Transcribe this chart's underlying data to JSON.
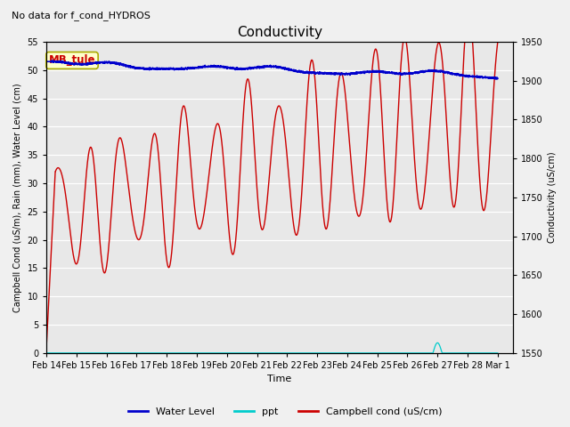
{
  "title": "Conductivity",
  "subtitle": "No data for f_cond_HYDROS",
  "xlabel": "Time",
  "ylabel_left": "Campbell Cond (uS/m), Rain (mm), Water Level (cm)",
  "ylabel_right": "Conductivity (uS/cm)",
  "ylim_left": [
    0,
    55
  ],
  "ylim_right": [
    1550,
    1950
  ],
  "xlim_left": 0,
  "xlim_right": 15.5,
  "yticks_left": [
    0,
    5,
    10,
    15,
    20,
    25,
    30,
    35,
    40,
    45,
    50,
    55
  ],
  "yticks_right": [
    1550,
    1600,
    1650,
    1700,
    1750,
    1800,
    1850,
    1900,
    1950
  ],
  "fig_bg_color": "#f0f0f0",
  "plot_bg_color": "#e8e8e8",
  "grid_color": "#ffffff",
  "annotation_box": "MB_tule",
  "annotation_box_color": "#ffffcc",
  "annotation_box_edge": "#aaaa00",
  "annotation_text_color": "#cc0000",
  "water_level_color": "#0000cc",
  "ppt_color": "#00cccc",
  "campbell_cond_color": "#cc0000",
  "legend_entries": [
    "Water Level",
    "ppt",
    "Campbell cond (uS/cm)"
  ],
  "xtick_labels": [
    "Feb 14",
    "Feb 15",
    "Feb 16",
    "Feb 17",
    "Feb 18",
    "Feb 19",
    "Feb 20",
    "Feb 21",
    "Feb 22",
    "Feb 23",
    "Feb 24",
    "Feb 25",
    "Feb 26",
    "Feb 27",
    "Feb 28",
    "Mar 1"
  ],
  "title_fontsize": 11,
  "subtitle_fontsize": 8,
  "axis_label_fontsize": 7,
  "tick_fontsize": 7,
  "legend_fontsize": 8
}
